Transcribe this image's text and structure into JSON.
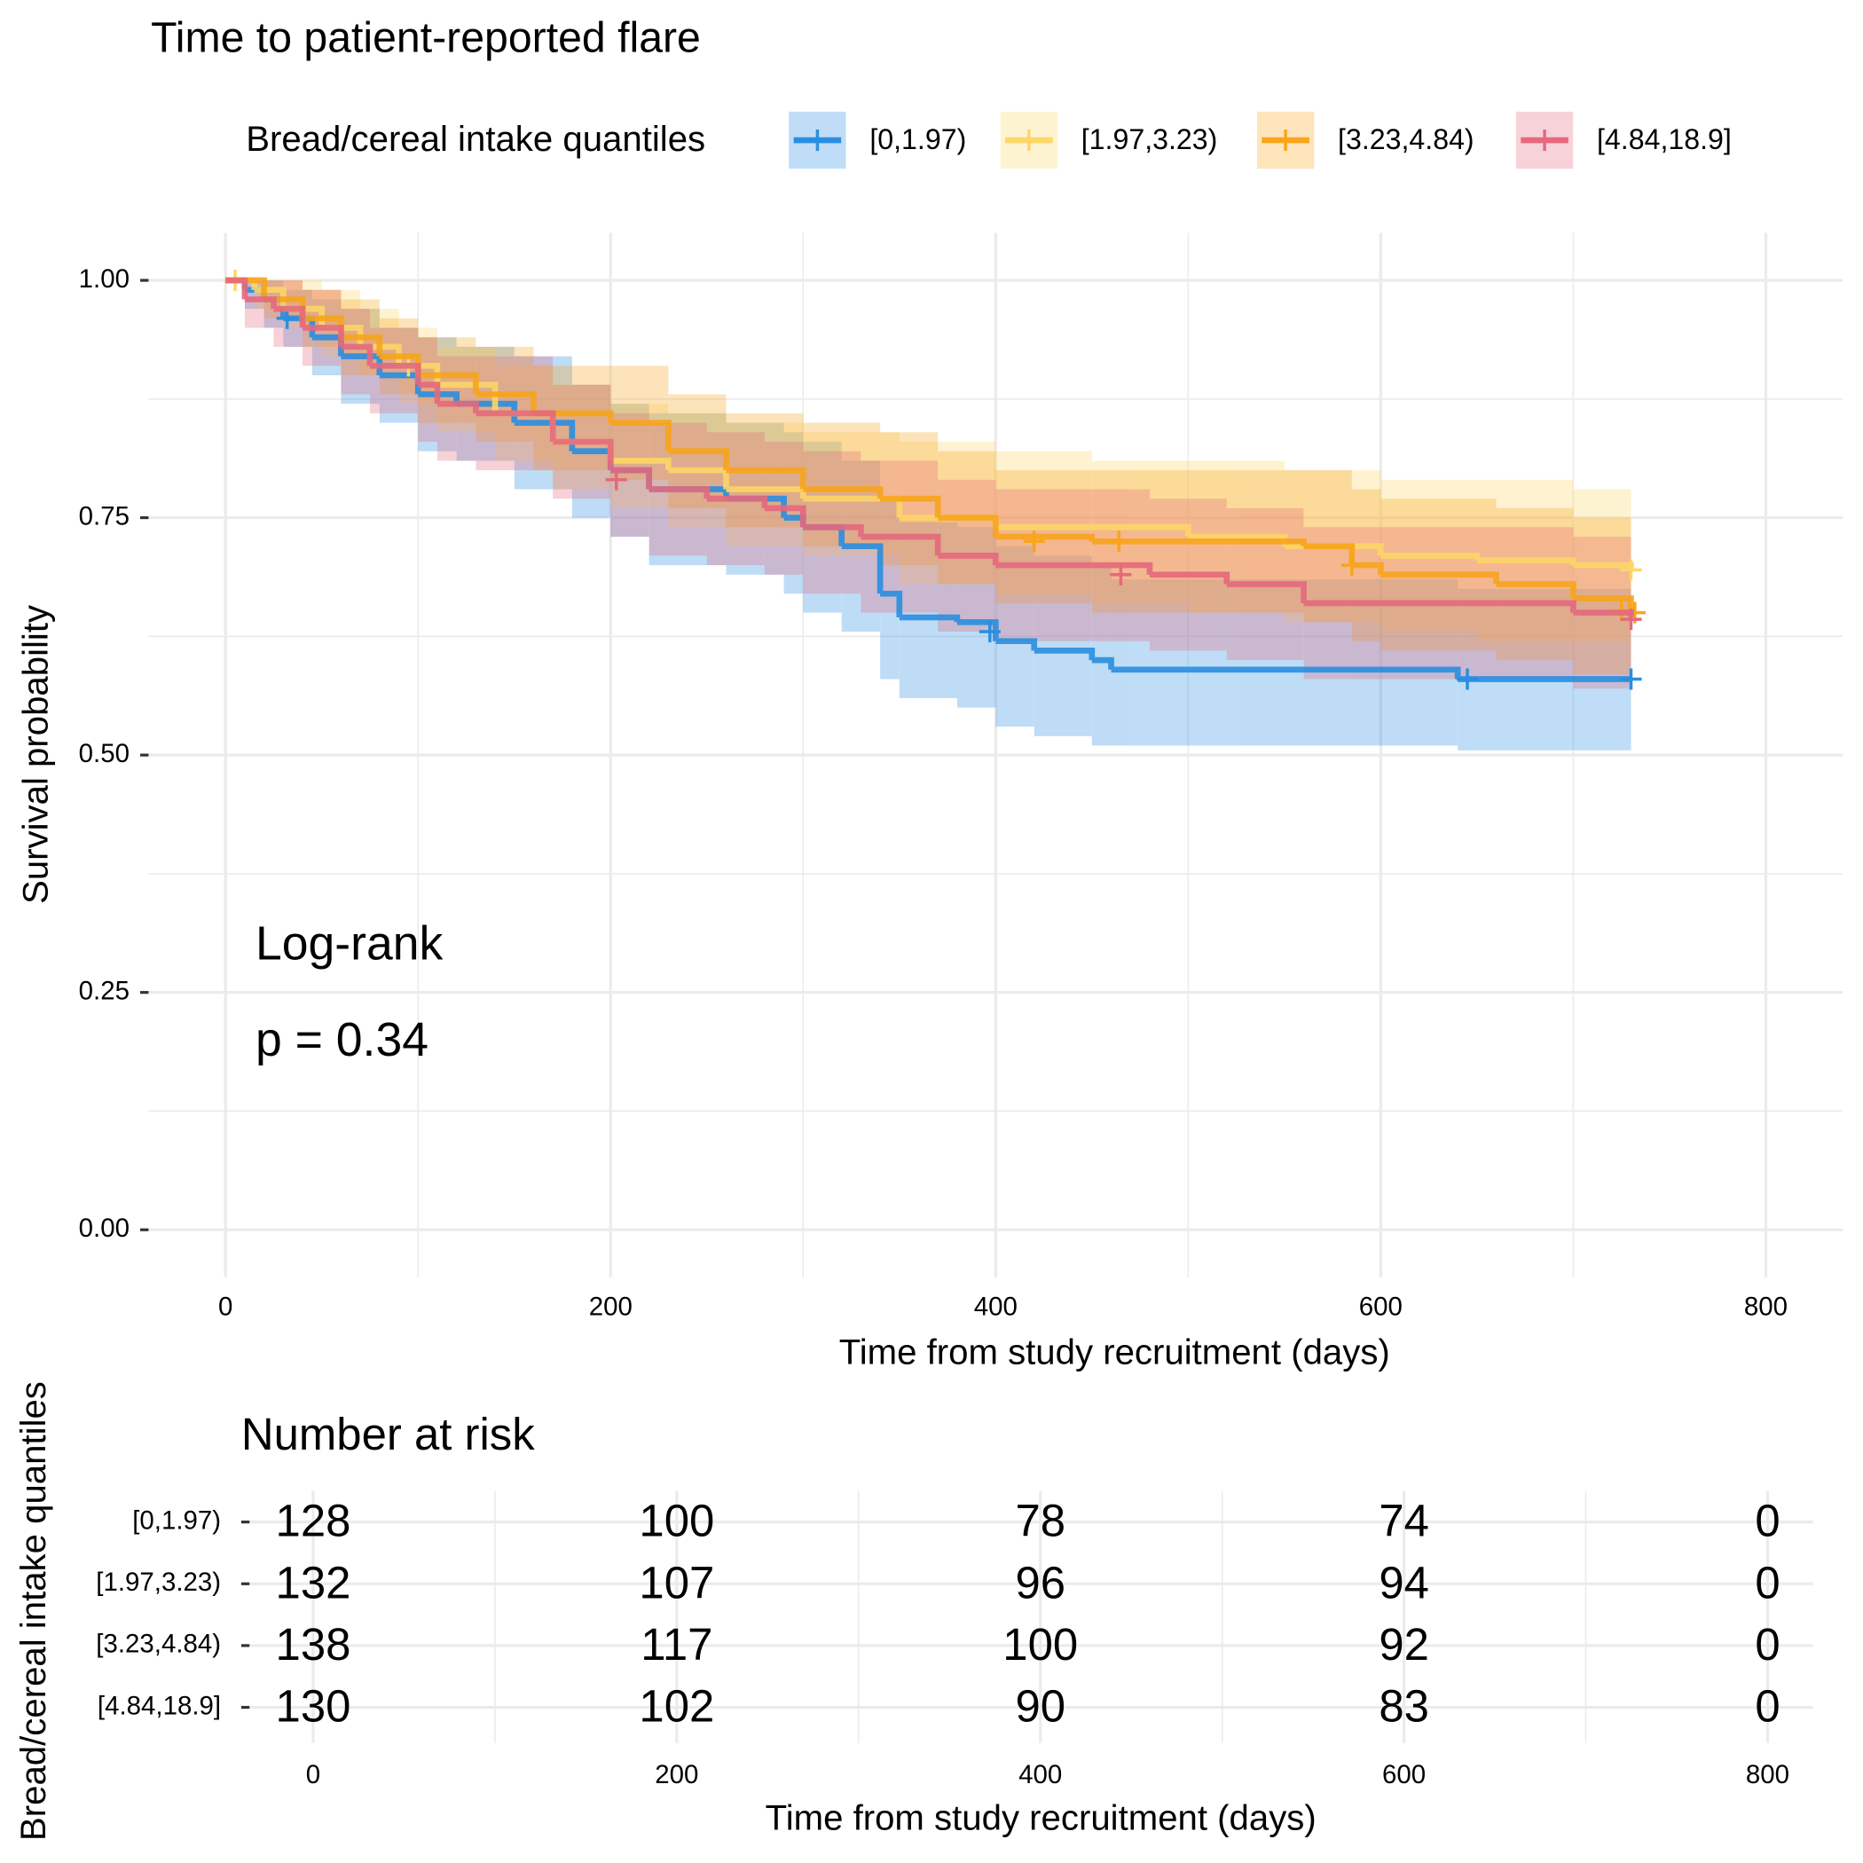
{
  "chart_data": [
    {
      "type": "km",
      "title": "Time to patient-reported flare",
      "legend_title": "Bread/cereal intake quantiles",
      "legend_position": "top",
      "xlabel": "Time from study recruitment (days)",
      "ylabel": "Survival probability",
      "xlim": [
        -40,
        840
      ],
      "xticks": [
        0,
        200,
        400,
        600,
        800
      ],
      "xminorticks": [
        100,
        300,
        500,
        700
      ],
      "ylim": [
        -0.05,
        1.05
      ],
      "yticks": [
        {
          "value": 0,
          "label": "0.00"
        },
        {
          "value": 0.25,
          "label": "0.25"
        },
        {
          "value": 0.5,
          "label": "0.50"
        },
        {
          "value": 0.75,
          "label": "0.75"
        },
        {
          "value": 1,
          "label": "1.00"
        }
      ],
      "yminorticks": [
        0.125,
        0.375,
        0.625,
        0.875
      ],
      "grid": true,
      "annotations": [
        "Log-rank",
        "p = 0.34"
      ],
      "series": [
        {
          "name": "[0,1.97)",
          "color": "#2a8ee0",
          "x": [
            0,
            10,
            20,
            30,
            45,
            60,
            80,
            100,
            120,
            150,
            180,
            200,
            220,
            260,
            290,
            300,
            320,
            340,
            350,
            380,
            400,
            420,
            450,
            460,
            560,
            640,
            730
          ],
          "values": [
            1,
            0.99,
            0.98,
            0.96,
            0.94,
            0.92,
            0.9,
            0.88,
            0.87,
            0.85,
            0.82,
            0.8,
            0.78,
            0.77,
            0.75,
            0.74,
            0.72,
            0.67,
            0.645,
            0.64,
            0.62,
            0.61,
            0.6,
            0.59,
            0.59,
            0.58,
            0.58
          ],
          "lower": [
            1,
            0.97,
            0.95,
            0.93,
            0.9,
            0.87,
            0.85,
            0.82,
            0.81,
            0.78,
            0.75,
            0.73,
            0.7,
            0.69,
            0.67,
            0.65,
            0.63,
            0.58,
            0.56,
            0.55,
            0.53,
            0.52,
            0.51,
            0.51,
            0.51,
            0.505,
            0.505
          ],
          "upper": [
            1,
            1,
            1,
            0.99,
            0.98,
            0.97,
            0.95,
            0.94,
            0.93,
            0.92,
            0.89,
            0.87,
            0.86,
            0.85,
            0.84,
            0.83,
            0.81,
            0.77,
            0.745,
            0.74,
            0.72,
            0.71,
            0.7,
            0.685,
            0.685,
            0.675,
            0.675
          ],
          "censor_x": [
            32,
            397,
            645,
            730
          ],
          "censor_values": [
            0.96,
            0.63,
            0.58,
            0.58
          ]
        },
        {
          "name": "[1.97,3.23)",
          "color": "#fdd667",
          "x": [
            0,
            15,
            30,
            50,
            70,
            90,
            110,
            140,
            170,
            200,
            230,
            260,
            300,
            350,
            400,
            450,
            500,
            550,
            600,
            650,
            700,
            730
          ],
          "values": [
            1,
            0.99,
            0.97,
            0.95,
            0.93,
            0.91,
            0.89,
            0.86,
            0.83,
            0.81,
            0.8,
            0.78,
            0.77,
            0.75,
            0.74,
            0.74,
            0.73,
            0.72,
            0.71,
            0.705,
            0.7,
            0.695
          ],
          "lower": [
            1,
            0.97,
            0.95,
            0.92,
            0.9,
            0.87,
            0.84,
            0.81,
            0.78,
            0.76,
            0.74,
            0.72,
            0.71,
            0.68,
            0.67,
            0.66,
            0.65,
            0.64,
            0.63,
            0.62,
            0.62,
            0.61
          ],
          "upper": [
            1,
            1,
            1,
            0.99,
            0.97,
            0.95,
            0.93,
            0.91,
            0.89,
            0.87,
            0.86,
            0.85,
            0.84,
            0.83,
            0.82,
            0.81,
            0.81,
            0.8,
            0.79,
            0.79,
            0.78,
            0.78
          ],
          "censor_x": [
            5,
            95,
            730
          ],
          "censor_values": [
            1,
            0.91,
            0.695
          ]
        },
        {
          "name": "[3.23,4.84)",
          "color": "#f8a51c",
          "x": [
            0,
            20,
            40,
            60,
            80,
            100,
            130,
            160,
            200,
            230,
            260,
            300,
            340,
            370,
            400,
            450,
            560,
            585,
            600,
            660,
            700,
            730
          ],
          "values": [
            1,
            0.98,
            0.96,
            0.94,
            0.92,
            0.9,
            0.88,
            0.86,
            0.85,
            0.82,
            0.8,
            0.78,
            0.77,
            0.75,
            0.73,
            0.725,
            0.72,
            0.7,
            0.69,
            0.68,
            0.665,
            0.65
          ],
          "lower": [
            1,
            0.96,
            0.93,
            0.9,
            0.88,
            0.85,
            0.83,
            0.8,
            0.79,
            0.76,
            0.74,
            0.72,
            0.7,
            0.68,
            0.66,
            0.65,
            0.64,
            0.62,
            0.61,
            0.6,
            0.585,
            0.57
          ],
          "upper": [
            1,
            1,
            0.99,
            0.98,
            0.96,
            0.94,
            0.93,
            0.91,
            0.91,
            0.88,
            0.86,
            0.85,
            0.84,
            0.82,
            0.8,
            0.8,
            0.8,
            0.78,
            0.77,
            0.76,
            0.75,
            0.74
          ],
          "censor_x": [
            420,
            464,
            585,
            725,
            732
          ],
          "censor_values": [
            0.725,
            0.725,
            0.7,
            0.652,
            0.65
          ]
        },
        {
          "name": "[4.84,18.9]",
          "color": "#e5697d",
          "x": [
            0,
            10,
            25,
            40,
            60,
            75,
            100,
            110,
            130,
            170,
            200,
            220,
            250,
            280,
            300,
            330,
            370,
            400,
            450,
            480,
            520,
            560,
            600,
            700,
            730
          ],
          "values": [
            1,
            0.98,
            0.97,
            0.95,
            0.93,
            0.91,
            0.89,
            0.87,
            0.86,
            0.83,
            0.8,
            0.78,
            0.77,
            0.76,
            0.74,
            0.73,
            0.71,
            0.7,
            0.7,
            0.69,
            0.68,
            0.66,
            0.66,
            0.65,
            0.645
          ],
          "lower": [
            1,
            0.95,
            0.93,
            0.91,
            0.88,
            0.86,
            0.83,
            0.81,
            0.8,
            0.77,
            0.73,
            0.71,
            0.7,
            0.69,
            0.67,
            0.65,
            0.63,
            0.62,
            0.62,
            0.61,
            0.6,
            0.58,
            0.58,
            0.57,
            0.565
          ],
          "upper": [
            1,
            1,
            1,
            0.99,
            0.97,
            0.95,
            0.94,
            0.92,
            0.92,
            0.89,
            0.86,
            0.85,
            0.84,
            0.83,
            0.82,
            0.81,
            0.79,
            0.78,
            0.78,
            0.77,
            0.76,
            0.74,
            0.74,
            0.73,
            0.725
          ],
          "censor_x": [
            203,
            465,
            730
          ],
          "censor_values": [
            0.79,
            0.69,
            0.643
          ]
        }
      ]
    },
    {
      "type": "risk_table",
      "title": "Number at risk",
      "xlabel": "Time from study recruitment (days)",
      "ylabel": "Bread/cereal intake quantiles",
      "xlim": [
        -35,
        825
      ],
      "xticks": [
        0,
        200,
        400,
        600,
        800
      ],
      "xminorticks": [
        100,
        300,
        500,
        700
      ],
      "x": [
        0,
        200,
        400,
        600,
        800
      ],
      "series": [
        {
          "name": "[0,1.97)",
          "color": "#2a8ee0",
          "values": [
            128,
            100,
            78,
            74,
            0
          ]
        },
        {
          "name": "[1.97,3.23)",
          "color": "#fdd667",
          "values": [
            132,
            107,
            96,
            94,
            0
          ]
        },
        {
          "name": "[3.23,4.84)",
          "color": "#f8a51c",
          "values": [
            138,
            117,
            100,
            92,
            0
          ]
        },
        {
          "name": "[4.84,18.9]",
          "color": "#e5697d",
          "values": [
            130,
            102,
            90,
            83,
            0
          ]
        }
      ]
    }
  ]
}
